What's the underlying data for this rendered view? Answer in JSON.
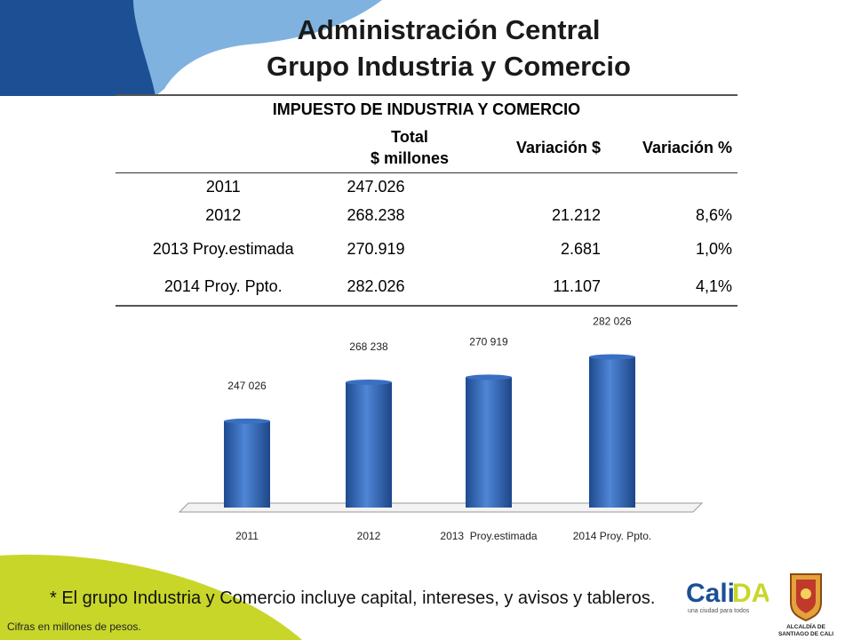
{
  "title": {
    "line1": "Administración Central",
    "line2": "Grupo Industria y Comercio"
  },
  "table": {
    "caption": "IMPUESTO  DE INDUSTRIA Y COMERCIO",
    "headers": {
      "total_line1": "Total",
      "total_line2": "$ millones",
      "var_abs": "Variación $",
      "var_pct": "Variación %"
    },
    "rows": [
      {
        "year": "2011",
        "total": "247.026",
        "var_abs": "",
        "var_pct": ""
      },
      {
        "year": "2012",
        "total": "268.238",
        "var_abs": "21.212",
        "var_pct": "8,6%"
      },
      {
        "year": "2013  Proy.estimada",
        "total": "270.919",
        "var_abs": "2.681",
        "var_pct": "1,0%"
      },
      {
        "year": "2014 Proy. Ppto.",
        "total": "282.026",
        "var_abs": "11.107",
        "var_pct": "4,1%"
      }
    ]
  },
  "chart_data": {
    "type": "bar",
    "categories": [
      "2011",
      "2012",
      "2013  Proy.estimada",
      "2014 Proy. Ppto."
    ],
    "values": [
      247026,
      268238,
      270919,
      282026
    ],
    "data_labels": [
      "247 026",
      "268 238",
      "270 919",
      "282 026"
    ],
    "title": "",
    "xlabel": "",
    "ylabel": "",
    "ylim": [
      200000,
      290000
    ],
    "grid": false,
    "bar_color": "#2f63b3"
  },
  "footnote": "* El grupo Industria y Comercio incluye capital, intereses, y avisos y tableros.",
  "small_note": "Cifras en millones de pesos.",
  "logo": {
    "text": "CaliDA",
    "tagline": "una ciudad para todos"
  },
  "seal": {
    "text_line1": "ALCALDÍA DE",
    "text_line2": "SANTIAGO DE CALI"
  },
  "colors": {
    "dark_blue": "#1c4f94",
    "light_blue": "#7fb2df",
    "lime": "#c8d62a"
  }
}
